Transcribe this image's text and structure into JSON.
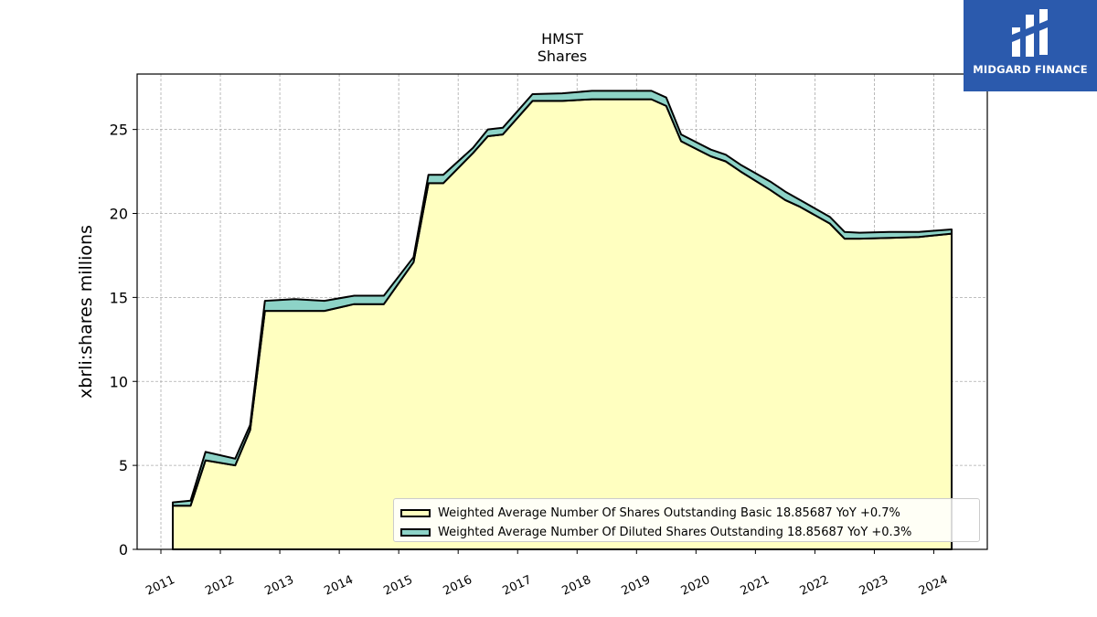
{
  "chart_data": {
    "type": "area",
    "title": "HMST",
    "subtitle": "Shares",
    "xlabel": "",
    "ylabel": "xbrli:shares millions",
    "xlim": [
      2010.6,
      2024.9
    ],
    "ylim": [
      0,
      28.3
    ],
    "x_ticks": [
      "2011",
      "2012",
      "2013",
      "2014",
      "2015",
      "2016",
      "2017",
      "2018",
      "2019",
      "2020",
      "2021",
      "2022",
      "2023",
      "2024"
    ],
    "y_ticks": [
      "0",
      "5",
      "10",
      "15",
      "20",
      "25"
    ],
    "grid": true,
    "legend_position": "lower-right",
    "series": [
      {
        "name": "Weighted Average Number Of Shares Outstanding Basic  18.85687 YoY +0.7%",
        "color": "#ffffc0",
        "x": [
          2011.2,
          2011.5,
          2011.75,
          2012.25,
          2012.5,
          2012.75,
          2013.25,
          2013.75,
          2014.25,
          2014.75,
          2015.25,
          2015.5,
          2015.75,
          2016.25,
          2016.5,
          2016.75,
          2017.25,
          2017.75,
          2018.25,
          2018.75,
          2019.25,
          2019.5,
          2019.75,
          2020.25,
          2020.5,
          2020.75,
          2021.25,
          2021.5,
          2021.75,
          2022.25,
          2022.5,
          2022.75,
          2023.25,
          2023.75,
          2024.3
        ],
        "values": [
          2.6,
          2.6,
          5.3,
          5.0,
          7.1,
          14.2,
          14.2,
          14.2,
          14.6,
          14.6,
          17.1,
          21.8,
          21.8,
          23.6,
          24.6,
          24.7,
          26.7,
          26.7,
          26.8,
          26.8,
          26.8,
          26.4,
          24.3,
          23.4,
          23.1,
          22.5,
          21.4,
          20.8,
          20.4,
          19.4,
          18.5,
          18.5,
          18.55,
          18.6,
          18.8
        ]
      },
      {
        "name": "Weighted Average Number Of Diluted Shares Outstanding  18.85687 YoY +0.3%",
        "color": "#8dd3c7",
        "x": [
          2011.2,
          2011.5,
          2011.75,
          2012.25,
          2012.5,
          2012.75,
          2013.25,
          2013.75,
          2014.25,
          2014.75,
          2015.25,
          2015.5,
          2015.75,
          2016.25,
          2016.5,
          2016.75,
          2017.25,
          2017.75,
          2018.25,
          2018.75,
          2019.25,
          2019.5,
          2019.75,
          2020.25,
          2020.5,
          2020.75,
          2021.25,
          2021.5,
          2021.75,
          2022.25,
          2022.5,
          2022.75,
          2023.25,
          2023.75,
          2024.3
        ],
        "values": [
          0.2,
          0.3,
          0.5,
          0.4,
          0.3,
          0.6,
          0.7,
          0.6,
          0.5,
          0.5,
          0.3,
          0.5,
          0.5,
          0.3,
          0.4,
          0.4,
          0.4,
          0.45,
          0.5,
          0.5,
          0.5,
          0.5,
          0.4,
          0.4,
          0.4,
          0.4,
          0.5,
          0.5,
          0.4,
          0.4,
          0.4,
          0.35,
          0.35,
          0.3,
          0.25
        ]
      }
    ]
  },
  "logo": {
    "text": "MIDGARD FINANCE"
  }
}
